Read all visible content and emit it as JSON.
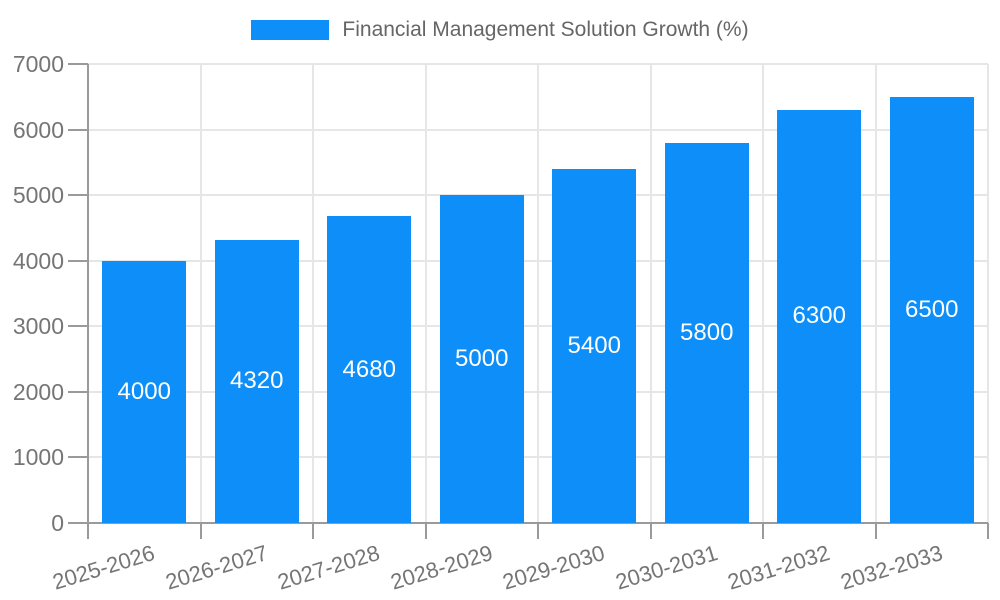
{
  "chart_data": {
    "type": "bar",
    "title": "",
    "legend": "Financial Management Solution Growth (%)",
    "legend_position": "top",
    "categories": [
      "2025-2026",
      "2026-2027",
      "2027-2028",
      "2028-2029",
      "2029-2030",
      "2030-2031",
      "2031-2032",
      "2032-2033"
    ],
    "values": [
      4000,
      4320,
      4680,
      5000,
      5400,
      5800,
      6300,
      6500
    ],
    "xlabel": "",
    "ylabel": "",
    "ylim": [
      0,
      7000
    ],
    "yticks": [
      0,
      1000,
      2000,
      3000,
      4000,
      5000,
      6000,
      7000
    ],
    "grid": true,
    "colors": {
      "bar": "#0d8ef8",
      "axis": "#9a9a9a",
      "grid": "#e6e6e6",
      "tick_label": "#757575",
      "legend_text": "#666666",
      "bar_label": "#ffffff",
      "background": "#ffffff"
    }
  }
}
